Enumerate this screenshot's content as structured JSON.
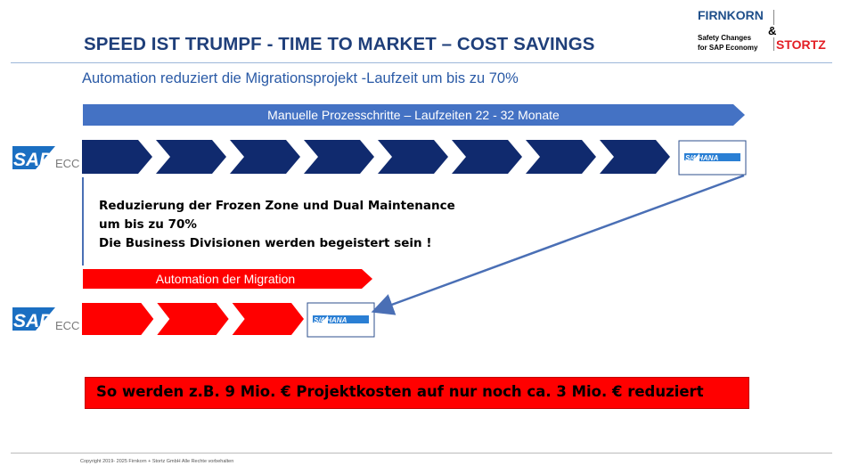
{
  "header": {
    "title": "SPEED IST TRUMPF - TIME TO MARKET – COST SAVINGS",
    "subtitle": "Automation reduziert die Migrationsprojekt -Laufzeit um bis zu 70%"
  },
  "logo": {
    "name_top": "FIRNKORN",
    "ampersand": "&",
    "tagline_1": "Safety Changes",
    "tagline_2": "for SAP Economy",
    "name_bottom": "STORTZ"
  },
  "colors": {
    "title": "#1f3f7a",
    "banner_blue": "#4472c4",
    "chevron_navy": "#102a6e",
    "red": "#ff0000",
    "arrow_blue": "#4a6fb5"
  },
  "manual": {
    "banner_label": "Manuelle Prozesschritte – Laufzeiten 22 - 32 Monate",
    "step_count": 8,
    "source_system": {
      "brand": "SAP",
      "suffix": "ECC"
    },
    "target_system": {
      "brand": "SAP",
      "suffix": "S/4 HANA"
    }
  },
  "reduction_note": {
    "line_1": "Reduzierung der Frozen Zone und Dual Maintenance",
    "line_2": "um bis zu 70%",
    "line_3": "Die Business Divisionen werden begeistert sein !"
  },
  "automated": {
    "banner_label": "Automation der Migration",
    "step_count": 3,
    "source_system": {
      "brand": "SAP",
      "suffix": "ECC"
    },
    "target_system": {
      "brand": "SAP",
      "suffix": "S/4 HANA"
    }
  },
  "savings": {
    "text": "So werden z.B. 9 Mio. € Projektkosten auf nur noch ca. 3 Mio. € reduziert"
  },
  "footer": {
    "copyright": "Copyright 2019- 2025 Firnkorn + Stortz GmbH Alle Rechte vorbehalten"
  }
}
